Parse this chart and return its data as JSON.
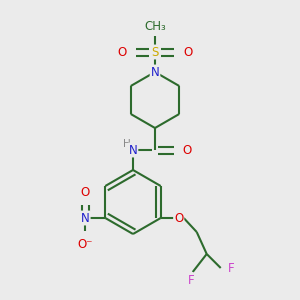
{
  "bg_color": "#ebebeb",
  "bond_color": "#2d6b2d",
  "atom_colors": {
    "N": "#2020cc",
    "O": "#dd0000",
    "S": "#ccaa00",
    "F": "#cc44cc",
    "H": "#888888",
    "C": "#2d6b2d"
  },
  "lw": 1.5,
  "fs": 8.5,
  "fs_small": 7.5
}
